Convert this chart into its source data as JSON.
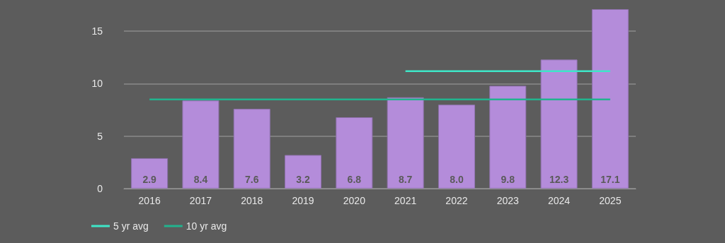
{
  "chart_data": {
    "type": "bar",
    "categories": [
      "2016",
      "2017",
      "2018",
      "2019",
      "2020",
      "2021",
      "2022",
      "2023",
      "2024",
      "2025"
    ],
    "series": [
      {
        "color": "#b48cda",
        "values": [
          2.9,
          8.4,
          7.6,
          3.2,
          6.8,
          8.7,
          8.0,
          9.8,
          12.3,
          17.1
        ],
        "value_labels": [
          "2.9",
          "8.4",
          "7.6",
          "3.2",
          "6.8",
          "8.7",
          "8.0",
          "9.8",
          "12.3",
          "17.1"
        ]
      },
      {
        "type": "line",
        "name": "5 yr avg",
        "color": "#3ee6c8",
        "values": [
          null,
          null,
          null,
          null,
          null,
          11.2,
          11.2,
          11.2,
          11.2,
          11.2
        ]
      },
      {
        "type": "line",
        "name": "10 yr avg",
        "color": "#22b38e",
        "values": [
          8.5,
          8.5,
          8.5,
          8.5,
          8.5,
          8.5,
          8.5,
          8.5,
          8.5,
          8.5
        ]
      }
    ],
    "ylim": [
      0,
      17.1
    ],
    "yticks": [
      0,
      5,
      10,
      15
    ],
    "grid": "y",
    "legend": "bottom left",
    "marker": "none",
    "line_style": "solid"
  }
}
